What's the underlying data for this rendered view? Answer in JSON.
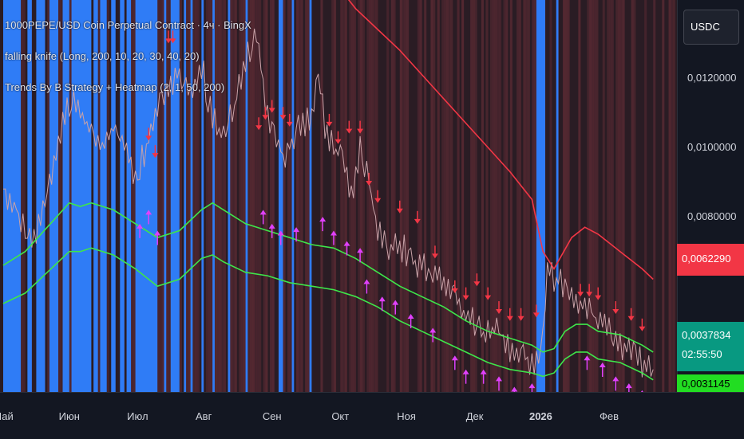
{
  "legend": {
    "symbol": "1000PEPE/USD Coin Perpetual Contract · 4ч · BingX",
    "indicator1": "falling knife (Long, 200, 10, 20, 30, 40, 20)",
    "indicator2": "Trends By B Strategy + Heatmap (2, 1, 50, 200)"
  },
  "currency": "USDC",
  "price_tags": {
    "red": "0,0062290",
    "green": "0,0037834",
    "countdown": "02:55:50",
    "lime": "0,0031145"
  },
  "colors": {
    "background": "#131722",
    "heatmap_dark": "#2a1c24",
    "heatmap_red": "#5a2a33",
    "blue_band": "#2f7cf6",
    "red_line": "#f23645",
    "green_line": "#3ee64a",
    "price": "#c9a2a8",
    "buy_marker": "#e040fb",
    "sell_marker": "#f23645",
    "tag_green": "#089981",
    "tag_lime": "#22dd22"
  },
  "chart_data": {
    "type": "line",
    "xlabel": "",
    "ylabel": "",
    "x_ticks": [
      "Май",
      "Июн",
      "Июл",
      "Авг",
      "Сен",
      "Окт",
      "Ноя",
      "Дек",
      "2026",
      "Фев"
    ],
    "x_tick_index": [
      0,
      30,
      61,
      91,
      122,
      153,
      183,
      214,
      244,
      275
    ],
    "y_ticks": [
      "0,0120000",
      "0,0100000",
      "0,0080000"
    ],
    "y_tick_values": [
      0.012,
      0.01,
      0.008
    ],
    "ylim": [
      0.00295,
      0.01425
    ],
    "grid": false,
    "series": [
      {
        "key": "price",
        "points": [
          [
            0,
            0.0088
          ],
          [
            5,
            0.0084
          ],
          [
            10,
            0.0075
          ],
          [
            15,
            0.0074
          ],
          [
            20,
            0.0086
          ],
          [
            25,
            0.0102
          ],
          [
            28,
            0.0108
          ],
          [
            31,
            0.0114
          ],
          [
            35,
            0.011
          ],
          [
            40,
            0.0104
          ],
          [
            45,
            0.01
          ],
          [
            50,
            0.0106
          ],
          [
            55,
            0.01
          ],
          [
            60,
            0.0092
          ],
          [
            65,
            0.01
          ],
          [
            70,
            0.0112
          ],
          [
            75,
            0.0118
          ],
          [
            80,
            0.0122
          ],
          [
            85,
            0.0116
          ],
          [
            90,
            0.0124
          ],
          [
            95,
            0.0108
          ],
          [
            100,
            0.0102
          ],
          [
            105,
            0.0112
          ],
          [
            110,
            0.0126
          ],
          [
            115,
            0.0132
          ],
          [
            120,
            0.011
          ],
          [
            124,
            0.0104
          ],
          [
            128,
            0.0096
          ],
          [
            132,
            0.0104
          ],
          [
            136,
            0.0106
          ],
          [
            140,
            0.011
          ],
          [
            143,
            0.0124
          ],
          [
            146,
            0.0106
          ],
          [
            150,
            0.01
          ],
          [
            155,
            0.0096
          ],
          [
            158,
            0.0086
          ],
          [
            162,
            0.01
          ],
          [
            166,
            0.009
          ],
          [
            170,
            0.0076
          ],
          [
            175,
            0.0072
          ],
          [
            180,
            0.0072
          ],
          [
            185,
            0.0068
          ],
          [
            190,
            0.0066
          ],
          [
            195,
            0.0064
          ],
          [
            200,
            0.0062
          ],
          [
            205,
            0.0056
          ],
          [
            210,
            0.0052
          ],
          [
            215,
            0.0048
          ],
          [
            220,
            0.0046
          ],
          [
            225,
            0.0048
          ],
          [
            230,
            0.0042
          ],
          [
            235,
            0.004
          ],
          [
            240,
            0.0038
          ],
          [
            244,
            0.0041
          ],
          [
            247,
            0.0064
          ],
          [
            250,
            0.0062
          ],
          [
            255,
            0.006
          ],
          [
            260,
            0.0056
          ],
          [
            265,
            0.0054
          ],
          [
            270,
            0.005
          ],
          [
            275,
            0.0048
          ],
          [
            280,
            0.0044
          ],
          [
            285,
            0.004
          ],
          [
            290,
            0.0038
          ],
          [
            295,
            0.0036
          ]
        ]
      },
      {
        "key": "red_line",
        "points": [
          [
            150,
            0.0148
          ],
          [
            160,
            0.014
          ],
          [
            170,
            0.0134
          ],
          [
            180,
            0.0128
          ],
          [
            190,
            0.0121
          ],
          [
            200,
            0.0114
          ],
          [
            210,
            0.0107
          ],
          [
            220,
            0.01
          ],
          [
            230,
            0.0093
          ],
          [
            240,
            0.0085
          ],
          [
            245,
            0.007
          ],
          [
            250,
            0.0065
          ],
          [
            258,
            0.0074
          ],
          [
            264,
            0.0077
          ],
          [
            270,
            0.0075
          ],
          [
            280,
            0.007
          ],
          [
            290,
            0.0065
          ],
          [
            295,
            0.0062
          ]
        ]
      },
      {
        "key": "green_upper",
        "points": [
          [
            0,
            0.0066
          ],
          [
            10,
            0.007
          ],
          [
            20,
            0.0077
          ],
          [
            30,
            0.0084
          ],
          [
            35,
            0.0083
          ],
          [
            40,
            0.0084
          ],
          [
            50,
            0.0082
          ],
          [
            60,
            0.0078
          ],
          [
            70,
            0.0074
          ],
          [
            80,
            0.0076
          ],
          [
            90,
            0.0082
          ],
          [
            95,
            0.0084
          ],
          [
            100,
            0.0082
          ],
          [
            110,
            0.0078
          ],
          [
            120,
            0.0076
          ],
          [
            130,
            0.0074
          ],
          [
            140,
            0.0072
          ],
          [
            150,
            0.0071
          ],
          [
            160,
            0.0068
          ],
          [
            170,
            0.0064
          ],
          [
            180,
            0.006
          ],
          [
            190,
            0.0057
          ],
          [
            200,
            0.0054
          ],
          [
            210,
            0.005
          ],
          [
            220,
            0.0047
          ],
          [
            230,
            0.0045
          ],
          [
            240,
            0.0043
          ],
          [
            245,
            0.0041
          ],
          [
            250,
            0.0042
          ],
          [
            255,
            0.0047
          ],
          [
            260,
            0.0049
          ],
          [
            265,
            0.0049
          ],
          [
            270,
            0.0047
          ],
          [
            280,
            0.0046
          ],
          [
            290,
            0.0043
          ],
          [
            295,
            0.0041
          ]
        ]
      },
      {
        "key": "green_lower",
        "points": [
          [
            0,
            0.0055
          ],
          [
            10,
            0.0058
          ],
          [
            20,
            0.0064
          ],
          [
            30,
            0.007
          ],
          [
            35,
            0.007
          ],
          [
            40,
            0.0071
          ],
          [
            50,
            0.0069
          ],
          [
            60,
            0.0065
          ],
          [
            70,
            0.006
          ],
          [
            80,
            0.0062
          ],
          [
            90,
            0.0068
          ],
          [
            95,
            0.0069
          ],
          [
            100,
            0.0067
          ],
          [
            110,
            0.0064
          ],
          [
            120,
            0.0063
          ],
          [
            130,
            0.0061
          ],
          [
            140,
            0.006
          ],
          [
            150,
            0.0059
          ],
          [
            160,
            0.0057
          ],
          [
            170,
            0.0054
          ],
          [
            180,
            0.005
          ],
          [
            190,
            0.0047
          ],
          [
            200,
            0.0044
          ],
          [
            210,
            0.0041
          ],
          [
            220,
            0.0038
          ],
          [
            230,
            0.0036
          ],
          [
            240,
            0.0035
          ],
          [
            245,
            0.0034
          ],
          [
            250,
            0.0035
          ],
          [
            255,
            0.0039
          ],
          [
            260,
            0.0041
          ],
          [
            265,
            0.0041
          ],
          [
            270,
            0.0039
          ],
          [
            280,
            0.0038
          ],
          [
            290,
            0.0035
          ],
          [
            295,
            0.0033
          ]
        ]
      }
    ],
    "blue_bands": [
      [
        0,
        8
      ],
      [
        11,
        13
      ],
      [
        15,
        19
      ],
      [
        21,
        25
      ],
      [
        27,
        30
      ],
      [
        31,
        40
      ],
      [
        41,
        43
      ],
      [
        44,
        47
      ],
      [
        49,
        51
      ],
      [
        53,
        55
      ],
      [
        56,
        58
      ],
      [
        60,
        70
      ],
      [
        73,
        74
      ],
      [
        76,
        80
      ],
      [
        82,
        83
      ],
      [
        85,
        86
      ],
      [
        90,
        91
      ],
      [
        95,
        96
      ],
      [
        102,
        103
      ],
      [
        110,
        111
      ],
      [
        125,
        127
      ],
      [
        131,
        132
      ],
      [
        139,
        140
      ],
      [
        242,
        246
      ],
      [
        251,
        252
      ]
    ],
    "sell_signals": [
      [
        66,
        0.0102
      ],
      [
        69,
        0.0097
      ],
      [
        75,
        0.013
      ],
      [
        77,
        0.013
      ],
      [
        116,
        0.0105
      ],
      [
        119,
        0.0108
      ],
      [
        122,
        0.011
      ],
      [
        127,
        0.0108
      ],
      [
        130,
        0.0106
      ],
      [
        148,
        0.0106
      ],
      [
        152,
        0.0101
      ],
      [
        157,
        0.0104
      ],
      [
        162,
        0.0104
      ],
      [
        166,
        0.0089
      ],
      [
        170,
        0.0084
      ],
      [
        180,
        0.0081
      ],
      [
        188,
        0.0078
      ],
      [
        196,
        0.0068
      ],
      [
        205,
        0.0058
      ],
      [
        210,
        0.0056
      ],
      [
        215,
        0.006
      ],
      [
        220,
        0.0056
      ],
      [
        225,
        0.0052
      ],
      [
        230,
        0.005
      ],
      [
        235,
        0.005
      ],
      [
        242,
        0.0051
      ],
      [
        262,
        0.0057
      ],
      [
        266,
        0.0057
      ],
      [
        270,
        0.0056
      ],
      [
        278,
        0.0052
      ],
      [
        285,
        0.005
      ],
      [
        290,
        0.0047
      ]
    ],
    "buy_signals": [
      [
        62,
        0.0078
      ],
      [
        66,
        0.0082
      ],
      [
        70,
        0.0076
      ],
      [
        118,
        0.0082
      ],
      [
        122,
        0.0078
      ],
      [
        126,
        0.0076
      ],
      [
        133,
        0.0077
      ],
      [
        145,
        0.008
      ],
      [
        150,
        0.0076
      ],
      [
        156,
        0.0073
      ],
      [
        162,
        0.0071
      ],
      [
        165,
        0.0062
      ],
      [
        172,
        0.0057
      ],
      [
        178,
        0.0056
      ],
      [
        185,
        0.0052
      ],
      [
        195,
        0.0048
      ],
      [
        205,
        0.004
      ],
      [
        210,
        0.0036
      ],
      [
        218,
        0.0036
      ],
      [
        225,
        0.0034
      ],
      [
        232,
        0.0031
      ],
      [
        240,
        0.0032
      ],
      [
        265,
        0.004
      ],
      [
        272,
        0.0038
      ],
      [
        278,
        0.0034
      ],
      [
        284,
        0.0032
      ],
      [
        290,
        0.003
      ]
    ]
  }
}
